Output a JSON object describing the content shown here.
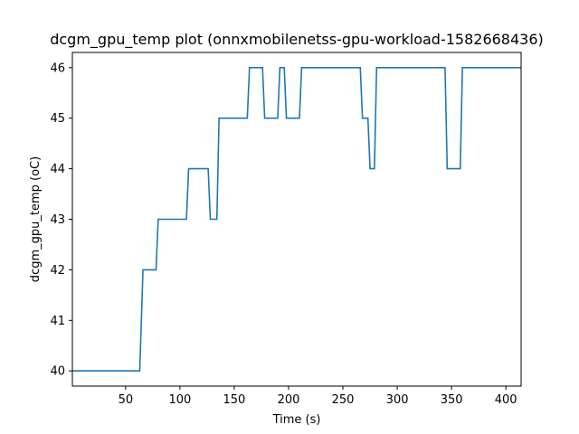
{
  "chart_data": {
    "type": "line",
    "title": "dcgm_gpu_temp plot (onnxmobilenetss-gpu-workload-1582668436)",
    "xlabel": "Time (s)",
    "ylabel": "dcgm_gpu_temp (oC)",
    "xlim": [
      1,
      414
    ],
    "ylim": [
      39.7,
      46.3
    ],
    "x_ticks": [
      50,
      100,
      150,
      200,
      250,
      300,
      350,
      400
    ],
    "y_ticks": [
      40,
      41,
      42,
      43,
      44,
      45,
      46
    ],
    "grid": false,
    "legend": false,
    "step": true,
    "series": [
      {
        "color": "#1f77b4",
        "x": [
          1,
          63,
          66,
          78,
          80,
          106,
          108,
          126,
          128,
          134,
          136,
          162,
          164,
          176,
          178,
          190,
          192,
          196,
          198,
          210,
          212,
          266,
          268,
          273,
          275,
          279,
          281,
          344,
          346,
          358,
          360,
          414
        ],
        "y": [
          40,
          40,
          42,
          42,
          43,
          43,
          44,
          44,
          43,
          43,
          45,
          45,
          46,
          46,
          45,
          45,
          46,
          46,
          45,
          45,
          46,
          46,
          45,
          45,
          44,
          44,
          46,
          46,
          44,
          44,
          46,
          46
        ]
      }
    ]
  }
}
